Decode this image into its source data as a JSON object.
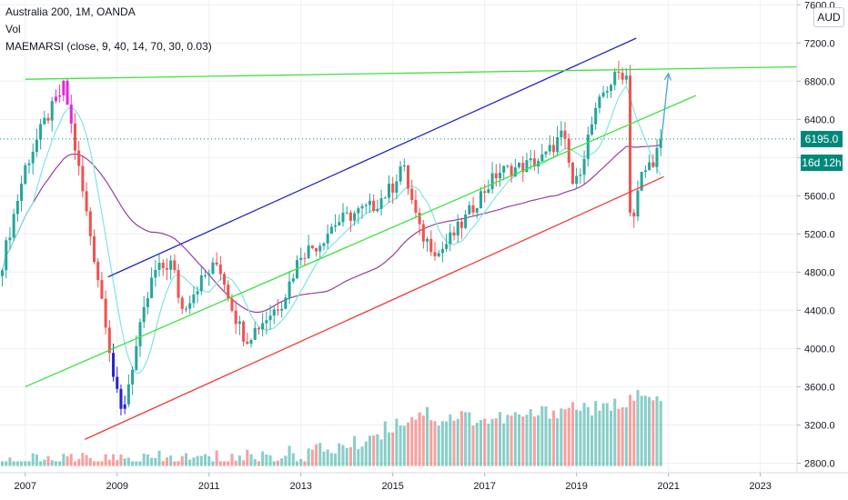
{
  "legend": {
    "symbol": "Australia 200, 1M, OANDA",
    "volume": "Vol",
    "indicator": "MAEMARSI (close, 9, 40, 14, 70, 30, 0.03)"
  },
  "currency": "AUD",
  "price_tags": {
    "last_price": "6195.0",
    "countdown": "16d 12h"
  },
  "colors": {
    "up": "#26a69a",
    "down": "#ef5350",
    "channel_upper": "#2525c8",
    "channel_lower": "#f23a3a",
    "mid_line": "#3de33d",
    "fast_ma": "#7fe5e5",
    "slow_ma": "#9c3f9c",
    "highlight_top": "#e02ad5",
    "highlight_bottom": "#2525c8",
    "price_tag": "#00897b"
  },
  "chart_data": {
    "type": "candlestick",
    "title": "Australia 200, 1M, OANDA",
    "y_axis": {
      "ticks": [
        "7600.0",
        "7200.0",
        "6800.0",
        "6400.0",
        "6000.0",
        "5600.0",
        "5200.0",
        "4800.0",
        "4400.0",
        "4000.0",
        "3600.0",
        "3200.0",
        "2800.0"
      ],
      "range": [
        2700,
        7650
      ]
    },
    "x_axis": {
      "ticks": [
        "2007",
        "2009",
        "2011",
        "2013",
        "2015",
        "2017",
        "2019",
        "2021",
        "2023"
      ],
      "range": [
        2006.45,
        2023.8
      ]
    },
    "last_price": 6195.0,
    "candle_path": [
      [
        2006.5,
        4900
      ],
      [
        2007.0,
        5900
      ],
      [
        2007.4,
        6350
      ],
      [
        2007.85,
        6750
      ],
      [
        2008.3,
        5500
      ],
      [
        2008.75,
        4300
      ],
      [
        2008.95,
        3600
      ],
      [
        2009.1,
        3300
      ],
      [
        2009.5,
        4200
      ],
      [
        2009.8,
        4800
      ],
      [
        2010.2,
        4900
      ],
      [
        2010.4,
        4400
      ],
      [
        2010.8,
        4700
      ],
      [
        2011.2,
        4900
      ],
      [
        2011.6,
        4300
      ],
      [
        2011.8,
        4100
      ],
      [
        2012.2,
        4300
      ],
      [
        2012.6,
        4500
      ],
      [
        2013.0,
        5000
      ],
      [
        2013.4,
        5100
      ],
      [
        2013.7,
        5300
      ],
      [
        2014.1,
        5400
      ],
      [
        2014.6,
        5500
      ],
      [
        2015.0,
        5700
      ],
      [
        2015.2,
        5950
      ],
      [
        2015.6,
        5200
      ],
      [
        2016.0,
        5000
      ],
      [
        2016.5,
        5300
      ],
      [
        2016.9,
        5600
      ],
      [
        2017.3,
        5850
      ],
      [
        2017.8,
        5900
      ],
      [
        2018.3,
        6000
      ],
      [
        2018.7,
        6250
      ],
      [
        2018.95,
        5650
      ],
      [
        2019.3,
        6300
      ],
      [
        2019.6,
        6700
      ],
      [
        2019.95,
        6900
      ],
      [
        2020.1,
        6850
      ],
      [
        2020.18,
        5200
      ],
      [
        2020.4,
        5800
      ],
      [
        2020.7,
        6000
      ],
      [
        2020.85,
        6195
      ]
    ],
    "volume_path": [
      [
        2006.5,
        2810
      ],
      [
        2011.0,
        2850
      ],
      [
        2013.0,
        2900
      ],
      [
        2014.2,
        3000
      ],
      [
        2015.0,
        3200
      ],
      [
        2015.7,
        3350
      ],
      [
        2016.0,
        3250
      ],
      [
        2016.5,
        3300
      ],
      [
        2017.0,
        3250
      ],
      [
        2018.0,
        3300
      ],
      [
        2019.0,
        3400
      ],
      [
        2019.6,
        3350
      ],
      [
        2020.2,
        3500
      ],
      [
        2020.8,
        3450
      ]
    ],
    "trend_lines": [
      {
        "label": "channel upper",
        "color": "#2525c8",
        "points": [
          [
            2008.8,
            4750
          ],
          [
            2020.3,
            7250
          ]
        ]
      },
      {
        "label": "channel lower",
        "color": "#f23a3a",
        "points": [
          [
            2008.3,
            3050
          ],
          [
            2020.9,
            5800
          ]
        ]
      },
      {
        "label": "horizontal resistance",
        "color": "#3de33d",
        "points": [
          [
            2007.0,
            6820
          ],
          [
            2023.8,
            6950
          ]
        ]
      },
      {
        "label": "mid channel",
        "color": "#3de33d",
        "points": [
          [
            2007.0,
            3600
          ],
          [
            2021.6,
            6650
          ]
        ]
      }
    ],
    "projection_arrow": {
      "from": [
        2020.85,
        6195
      ],
      "to": [
        2021.0,
        6880
      ]
    },
    "grid": true
  }
}
